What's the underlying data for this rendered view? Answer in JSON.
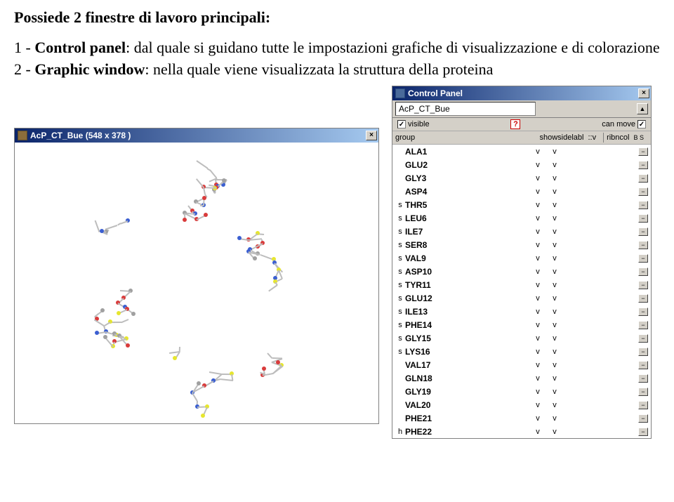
{
  "desc": {
    "line1a": "Possiede 2 finestre di lavoro principali:",
    "item1_num": "1 - ",
    "item1_bold": "Control panel",
    "item1_rest": ": dal quale si guidano tutte le impostazioni grafiche di visualizzazione e di colorazione",
    "item2_num": "2 - ",
    "item2_bold": "Graphic window",
    "item2_rest": ": nella quale viene visualizzata la struttura della proteina"
  },
  "graphic": {
    "title": "AcP_CT_Bue  (548 x 378 )",
    "closeX": "×"
  },
  "control": {
    "title": "Control Panel",
    "closeX": "×",
    "arrowUp": "▲",
    "subject": "AcP_CT_Bue",
    "row1": {
      "visible": "visible",
      "canmove": "can move",
      "check": "✓"
    },
    "row2": {
      "group": "group",
      "showsidelabl": "showsidelabl",
      "vv": "::v",
      "ribncol": "ribncol",
      "bs": "B S"
    },
    "residues": [
      {
        "sel": "",
        "name": "ALA1",
        "v1": "v",
        "v2": "v"
      },
      {
        "sel": "",
        "name": "GLU2",
        "v1": "v",
        "v2": "v"
      },
      {
        "sel": "",
        "name": "GLY3",
        "v1": "v",
        "v2": "v"
      },
      {
        "sel": "",
        "name": "ASP4",
        "v1": "v",
        "v2": "v"
      },
      {
        "sel": "s",
        "name": "THR5",
        "v1": "v",
        "v2": "v"
      },
      {
        "sel": "s",
        "name": "LEU6",
        "v1": "v",
        "v2": "v"
      },
      {
        "sel": "s",
        "name": "ILE7",
        "v1": "v",
        "v2": "v"
      },
      {
        "sel": "s",
        "name": "SER8",
        "v1": "v",
        "v2": "v"
      },
      {
        "sel": "s",
        "name": "VAL9",
        "v1": "v",
        "v2": "v"
      },
      {
        "sel": "s",
        "name": "ASP10",
        "v1": "v",
        "v2": "v"
      },
      {
        "sel": "s",
        "name": "TYR11",
        "v1": "v",
        "v2": "v"
      },
      {
        "sel": "s",
        "name": "GLU12",
        "v1": "v",
        "v2": "v"
      },
      {
        "sel": "s",
        "name": "ILE13",
        "v1": "v",
        "v2": "v"
      },
      {
        "sel": "s",
        "name": "PHE14",
        "v1": "v",
        "v2": "v"
      },
      {
        "sel": "s",
        "name": "GLY15",
        "v1": "v",
        "v2": "v"
      },
      {
        "sel": "s",
        "name": "LYS16",
        "v1": "v",
        "v2": "v"
      },
      {
        "sel": "",
        "name": "VAL17",
        "v1": "v",
        "v2": "v"
      },
      {
        "sel": "",
        "name": "GLN18",
        "v1": "v",
        "v2": "v"
      },
      {
        "sel": "",
        "name": "GLY19",
        "v1": "v",
        "v2": "v"
      },
      {
        "sel": "",
        "name": "VAL20",
        "v1": "v",
        "v2": "v"
      },
      {
        "sel": "",
        "name": "PHE21",
        "v1": "v",
        "v2": "v"
      },
      {
        "sel": "h",
        "name": "PHE22",
        "v1": "v",
        "v2": "v"
      }
    ],
    "minibtn": "−"
  },
  "molecule": {
    "colors": {
      "bond": "#bdbdbd",
      "nitrogen": "#3b5fd1",
      "oxygen": "#d93b3b",
      "sulfur": "#e6e62e",
      "carbon": "#a0a0a0"
    }
  }
}
